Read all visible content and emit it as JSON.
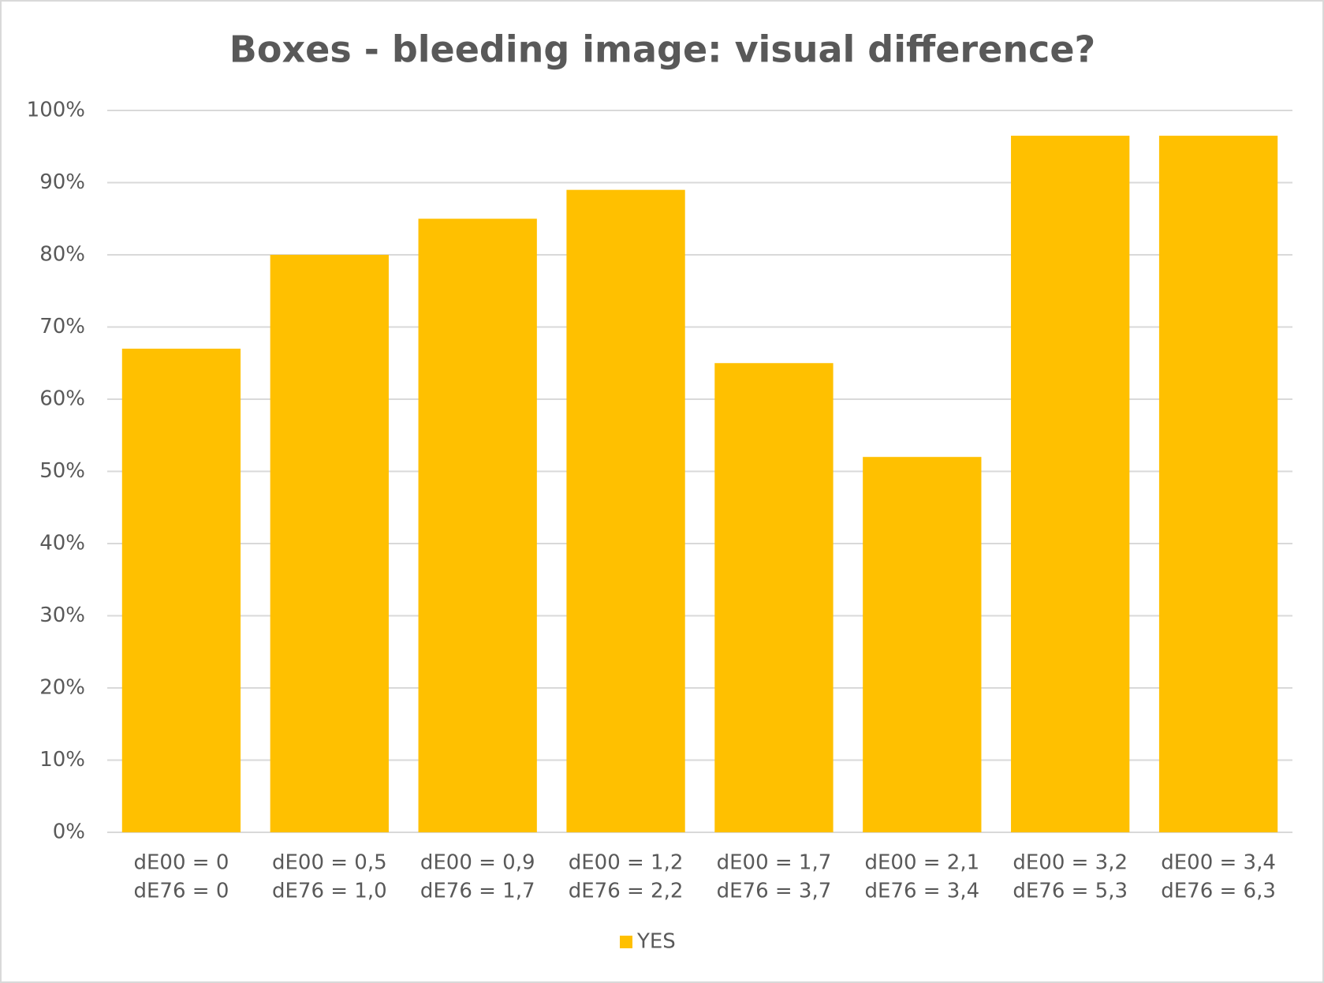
{
  "chart_data": {
    "type": "bar",
    "title": "Boxes - bleeding image: visual difference?",
    "categories": [
      [
        "dE00 = 0",
        "dE76 = 0"
      ],
      [
        "dE00 = 0,5",
        "dE76 = 1,0"
      ],
      [
        "dE00 = 0,9",
        "dE76 = 1,7"
      ],
      [
        "dE00 = 1,2",
        "dE76 = 2,2"
      ],
      [
        "dE00 = 1,7",
        "dE76 = 3,7"
      ],
      [
        "dE00 = 2,1",
        "dE76 = 3,4"
      ],
      [
        "dE00 = 3,2",
        "dE76 = 5,3"
      ],
      [
        "dE00 = 3,4",
        "dE76 = 6,3"
      ]
    ],
    "series": [
      {
        "name": "YES",
        "color": "#ffc000",
        "values": [
          67,
          80,
          85,
          89,
          65,
          52,
          96.5,
          96.5
        ]
      }
    ],
    "ylim": [
      0,
      100
    ],
    "yticks": [
      {
        "value": 0,
        "label": "0%"
      },
      {
        "value": 10,
        "label": "10%"
      },
      {
        "value": 20,
        "label": "20%"
      },
      {
        "value": 30,
        "label": "30%"
      },
      {
        "value": 40,
        "label": "40%"
      },
      {
        "value": 50,
        "label": "50%"
      },
      {
        "value": 60,
        "label": "60%"
      },
      {
        "value": 70,
        "label": "70%"
      },
      {
        "value": 80,
        "label": "80%"
      },
      {
        "value": 90,
        "label": "90%"
      },
      {
        "value": 100,
        "label": "100%"
      }
    ],
    "grid": true,
    "legend": "bottom"
  }
}
